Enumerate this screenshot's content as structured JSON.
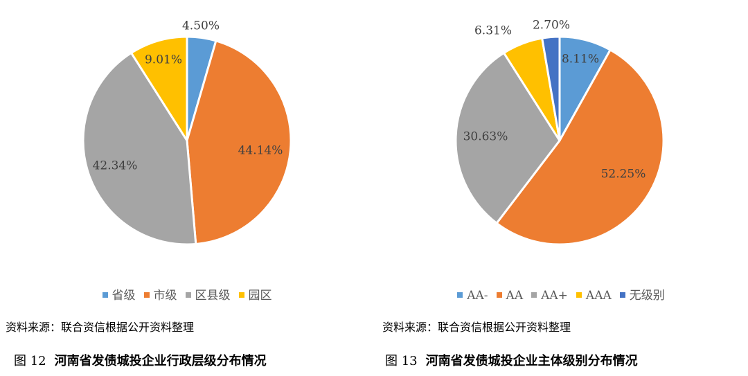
{
  "chart_data": [
    {
      "type": "pie",
      "categories": [
        "省级",
        "市级",
        "区县级",
        "园区"
      ],
      "values": [
        4.5,
        44.14,
        42.34,
        9.01
      ],
      "labels": [
        "4.50%",
        "44.14%",
        "42.34%",
        "9.01%"
      ],
      "colors": [
        "#5B9BD5",
        "#ED7D31",
        "#A5A5A5",
        "#FFC000"
      ],
      "legend_position": "bottom",
      "source": "资料来源：联合资信根据公开资料整理",
      "caption_number": "图 12",
      "caption_title": "河南省发债城投企业行政层级分布情况"
    },
    {
      "type": "pie",
      "categories": [
        "AA-",
        "AA",
        "AA+",
        "AAA",
        "无级别"
      ],
      "values": [
        8.11,
        52.25,
        30.63,
        6.31,
        2.7
      ],
      "labels": [
        "8.11%",
        "52.25%",
        "30.63%",
        "6.31%",
        "2.70%"
      ],
      "colors": [
        "#5B9BD5",
        "#ED7D31",
        "#A5A5A5",
        "#FFC000",
        "#4472C4"
      ],
      "legend_position": "bottom",
      "source": "资料来源：联合资信根据公开资料整理",
      "caption_number": "图 13",
      "caption_title": "河南省发债城投企业主体级别分布情况"
    }
  ]
}
